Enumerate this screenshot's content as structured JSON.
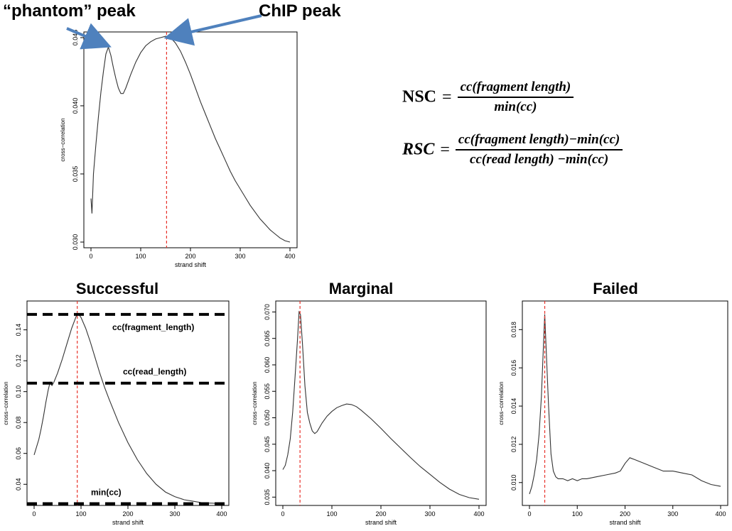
{
  "annotations": {
    "phantom_peak": "“phantom” peak",
    "chip_peak": "ChIP peak"
  },
  "formulas": {
    "nsc": {
      "lhs": "NSC",
      "eq": "=",
      "numerator": "cc(fragment length)",
      "denominator": "min(cc)"
    },
    "rsc": {
      "lhs": "RSC",
      "eq": "=",
      "numerator": "cc(fragment length)−min(cc)",
      "denominator": "cc(read length) −min(cc)"
    }
  },
  "colors": {
    "line": "#333333",
    "marker": "#e8322a",
    "arrow": "#4f81bd",
    "dash": "#000000"
  },
  "chart_data": [
    {
      "id": "top",
      "type": "line",
      "title": "",
      "xlabel": "strand shift",
      "ylabel": "cross−correlation",
      "xlim": [
        0,
        400
      ],
      "ylim": [
        0.03,
        0.045
      ],
      "xticks": [
        "0",
        "100",
        "200",
        "300",
        "400"
      ],
      "yticks": [
        "0.030",
        "0.035",
        "0.040",
        "0.045"
      ],
      "vline": 152,
      "x": [
        0,
        2,
        5,
        10,
        15,
        20,
        25,
        30,
        35,
        40,
        45,
        50,
        55,
        60,
        65,
        70,
        80,
        90,
        100,
        110,
        120,
        130,
        140,
        150,
        155,
        160,
        170,
        180,
        190,
        200,
        210,
        220,
        230,
        240,
        250,
        260,
        270,
        280,
        290,
        300,
        310,
        320,
        330,
        340,
        350,
        360,
        370,
        380,
        390,
        400
      ],
      "y": [
        0.0332,
        0.0321,
        0.035,
        0.0372,
        0.0392,
        0.041,
        0.0425,
        0.0438,
        0.0443,
        0.0437,
        0.0428,
        0.042,
        0.0413,
        0.0409,
        0.0409,
        0.0413,
        0.0423,
        0.0432,
        0.0439,
        0.0444,
        0.0447,
        0.0449,
        0.045,
        0.0451,
        0.0451,
        0.045,
        0.0446,
        0.044,
        0.0432,
        0.0423,
        0.0413,
        0.0403,
        0.0394,
        0.0385,
        0.0376,
        0.0368,
        0.036,
        0.0352,
        0.0345,
        0.0339,
        0.0333,
        0.0327,
        0.0322,
        0.0317,
        0.0313,
        0.0309,
        0.0306,
        0.0303,
        0.0301,
        0.03
      ]
    },
    {
      "id": "successful",
      "type": "line",
      "title": "Successful",
      "xlabel": "strand shift",
      "ylabel": "cross−correlation",
      "xlim": [
        0,
        400
      ],
      "ylim": [
        0.03,
        0.155
      ],
      "xticks": [
        "0",
        "100",
        "200",
        "300",
        "400"
      ],
      "yticks": [
        "0.04",
        "0.06",
        "0.08",
        "0.10",
        "0.12",
        "0.14"
      ],
      "vline": 92,
      "hlines": [
        {
          "value": 0.15,
          "label": "cc(fragment_length)"
        },
        {
          "value": 0.1055,
          "label": "cc(read_length)"
        },
        {
          "value": 0.0275,
          "label": "min(cc)"
        }
      ],
      "x": [
        0,
        5,
        10,
        15,
        20,
        25,
        30,
        34,
        38,
        42,
        50,
        60,
        70,
        80,
        90,
        95,
        100,
        110,
        120,
        130,
        140,
        150,
        160,
        180,
        200,
        220,
        240,
        260,
        280,
        300,
        320,
        340,
        360,
        380,
        400
      ],
      "y": [
        0.059,
        0.064,
        0.069,
        0.076,
        0.084,
        0.093,
        0.101,
        0.106,
        0.104,
        0.106,
        0.112,
        0.121,
        0.131,
        0.141,
        0.149,
        0.15,
        0.148,
        0.141,
        0.132,
        0.122,
        0.112,
        0.103,
        0.095,
        0.08,
        0.067,
        0.056,
        0.047,
        0.04,
        0.035,
        0.032,
        0.03,
        0.029,
        0.028,
        0.0278,
        0.0275
      ]
    },
    {
      "id": "marginal",
      "type": "line",
      "title": "Marginal",
      "xlabel": "strand shift",
      "ylabel": "cross−correlation",
      "xlim": [
        0,
        400
      ],
      "ylim": [
        0.0345,
        0.071
      ],
      "xticks": [
        "0",
        "100",
        "200",
        "300",
        "400"
      ],
      "yticks": [
        "0.035",
        "0.040",
        "0.045",
        "0.050",
        "0.055",
        "0.060",
        "0.065",
        "0.070"
      ],
      "vline": 35,
      "x": [
        0,
        5,
        10,
        15,
        20,
        25,
        30,
        33,
        36,
        40,
        45,
        50,
        55,
        60,
        65,
        70,
        80,
        90,
        100,
        110,
        120,
        130,
        140,
        150,
        160,
        180,
        200,
        220,
        240,
        260,
        280,
        300,
        320,
        340,
        360,
        380,
        400
      ],
      "y": [
        0.0402,
        0.041,
        0.043,
        0.046,
        0.051,
        0.058,
        0.065,
        0.07,
        0.0695,
        0.064,
        0.056,
        0.051,
        0.049,
        0.0475,
        0.047,
        0.0474,
        0.049,
        0.0503,
        0.0512,
        0.0519,
        0.0523,
        0.0526,
        0.0525,
        0.0521,
        0.0514,
        0.0498,
        0.048,
        0.0461,
        0.0443,
        0.0425,
        0.0408,
        0.0393,
        0.0378,
        0.0365,
        0.0355,
        0.0349,
        0.0346
      ]
    },
    {
      "id": "failed",
      "type": "line",
      "title": "Failed",
      "xlabel": "strand shift",
      "ylabel": "cross−correlation",
      "xlim": [
        0,
        400
      ],
      "ylim": [
        0.0091,
        0.0192
      ],
      "xticks": [
        "0",
        "100",
        "200",
        "300",
        "400"
      ],
      "yticks": [
        "0.010",
        "0.012",
        "0.014",
        "0.016",
        "0.018"
      ],
      "vline": 32,
      "x": [
        0,
        5,
        10,
        15,
        20,
        25,
        29,
        32,
        35,
        40,
        45,
        50,
        55,
        60,
        70,
        80,
        90,
        100,
        110,
        120,
        140,
        160,
        180,
        190,
        200,
        210,
        220,
        240,
        260,
        280,
        300,
        320,
        340,
        360,
        380,
        400
      ],
      "y": [
        0.0094,
        0.0098,
        0.0104,
        0.0112,
        0.0125,
        0.0145,
        0.017,
        0.0188,
        0.017,
        0.014,
        0.0115,
        0.0106,
        0.0103,
        0.0102,
        0.0102,
        0.0101,
        0.0102,
        0.0101,
        0.0102,
        0.0102,
        0.0103,
        0.0104,
        0.0105,
        0.0106,
        0.011,
        0.0113,
        0.0112,
        0.011,
        0.0108,
        0.0106,
        0.0106,
        0.0105,
        0.0104,
        0.0101,
        0.0099,
        0.0098
      ]
    }
  ]
}
